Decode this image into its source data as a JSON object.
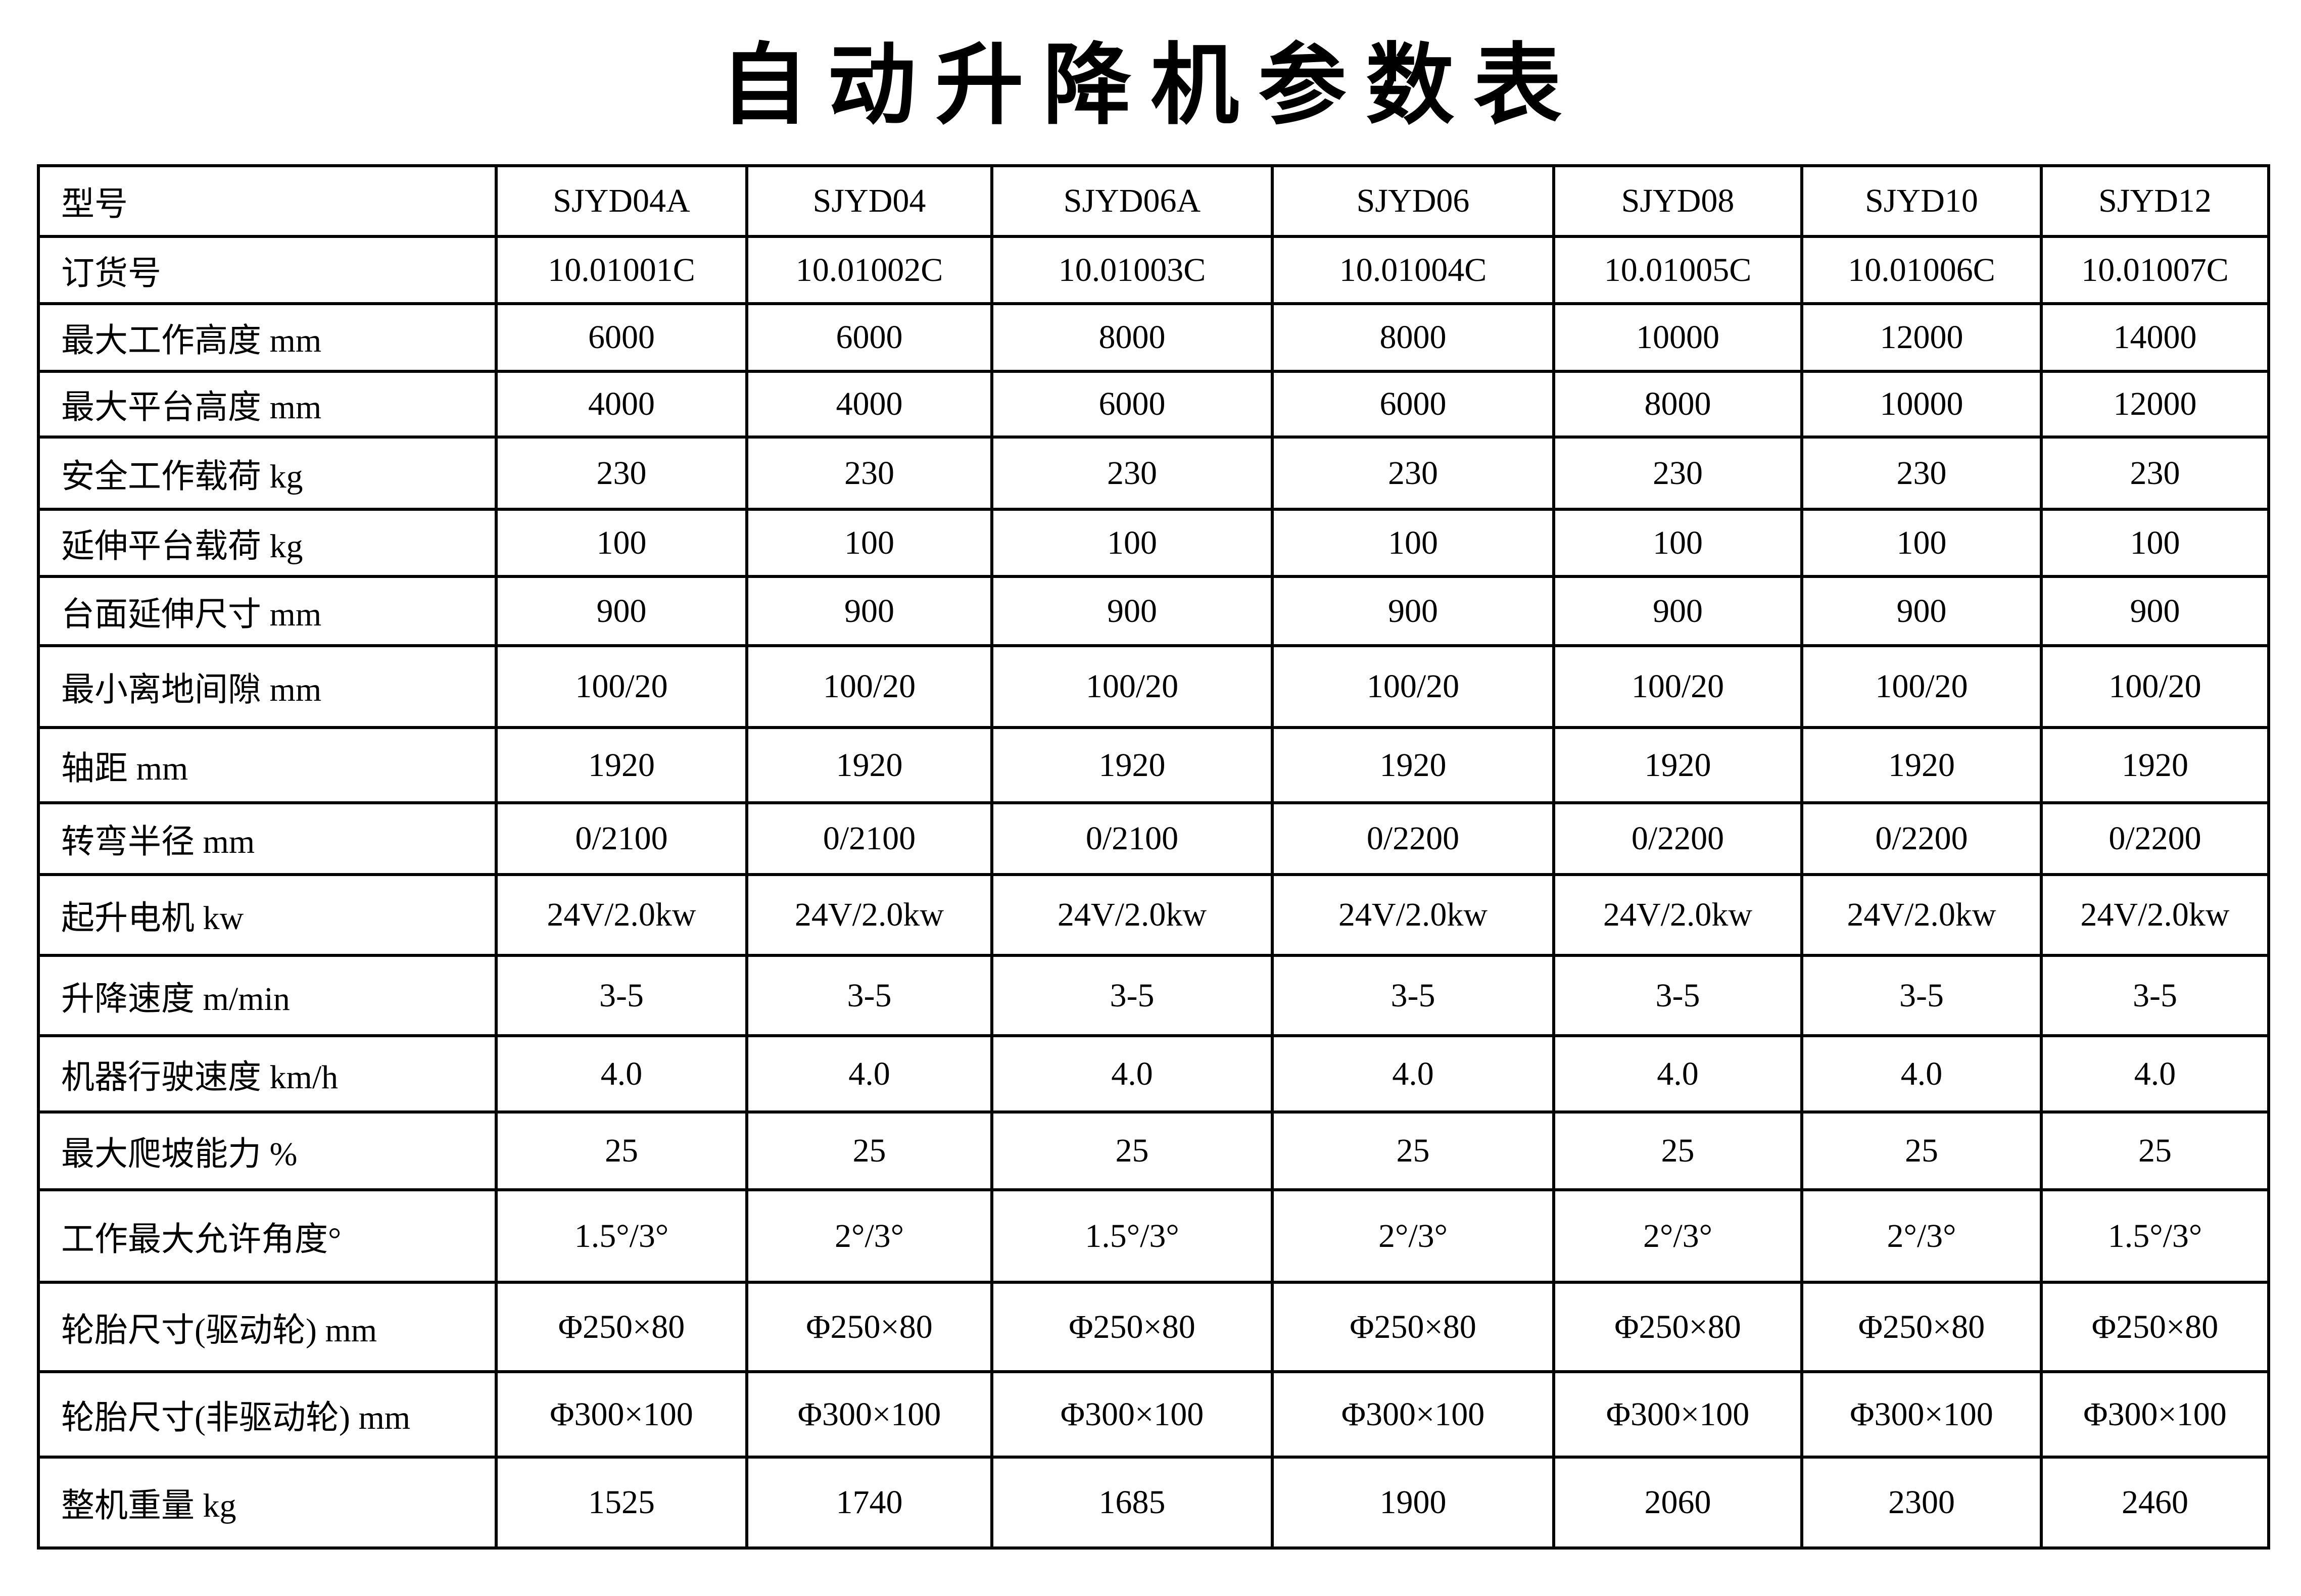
{
  "title": "自动升降机参数表",
  "table": {
    "rows": [
      {
        "label": "型号",
        "values": [
          "SJYD04A",
          "SJYD04",
          "SJYD06A",
          "SJYD06",
          "SJYD08",
          "SJYD10",
          "SJYD12"
        ]
      },
      {
        "label": "订货号",
        "values": [
          "10.01001C",
          "10.01002C",
          "10.01003C",
          "10.01004C",
          "10.01005C",
          "10.01006C",
          "10.01007C"
        ]
      },
      {
        "label": "最大工作高度 mm",
        "values": [
          "6000",
          "6000",
          "8000",
          "8000",
          "10000",
          "12000",
          "14000"
        ]
      },
      {
        "label": "最大平台高度 mm",
        "values": [
          "4000",
          "4000",
          "6000",
          "6000",
          "8000",
          "10000",
          "12000"
        ]
      },
      {
        "label": "安全工作载荷 kg",
        "values": [
          "230",
          "230",
          "230",
          "230",
          "230",
          "230",
          "230"
        ]
      },
      {
        "label": "延伸平台载荷 kg",
        "values": [
          "100",
          "100",
          "100",
          "100",
          "100",
          "100",
          "100"
        ]
      },
      {
        "label": "台面延伸尺寸 mm",
        "values": [
          "900",
          "900",
          "900",
          "900",
          "900",
          "900",
          "900"
        ]
      },
      {
        "label": "最小离地间隙 mm",
        "values": [
          "100/20",
          "100/20",
          "100/20",
          "100/20",
          "100/20",
          "100/20",
          "100/20"
        ]
      },
      {
        "label": "轴距 mm",
        "values": [
          "1920",
          "1920",
          "1920",
          "1920",
          "1920",
          "1920",
          "1920"
        ]
      },
      {
        "label": "转弯半径 mm",
        "values": [
          "0/2100",
          "0/2100",
          "0/2100",
          "0/2200",
          "0/2200",
          "0/2200",
          "0/2200"
        ]
      },
      {
        "label": "起升电机 kw",
        "values": [
          "24V/2.0kw",
          "24V/2.0kw",
          "24V/2.0kw",
          "24V/2.0kw",
          "24V/2.0kw",
          "24V/2.0kw",
          "24V/2.0kw"
        ]
      },
      {
        "label": "升降速度  m/min",
        "values": [
          "3-5",
          "3-5",
          "3-5",
          "3-5",
          "3-5",
          "3-5",
          "3-5"
        ]
      },
      {
        "label": "机器行驶速度 km/h",
        "values": [
          "4.0",
          "4.0",
          "4.0",
          "4.0",
          "4.0",
          "4.0",
          "4.0"
        ]
      },
      {
        "label": "最大爬坡能力  %",
        "values": [
          "25",
          "25",
          "25",
          "25",
          "25",
          "25",
          "25"
        ]
      },
      {
        "label": "工作最大允许角度°",
        "values": [
          "1.5°/3°",
          "2°/3°",
          "1.5°/3°",
          "2°/3°",
          "2°/3°",
          "2°/3°",
          "1.5°/3°"
        ]
      },
      {
        "label": "轮胎尺寸(驱动轮) mm",
        "values": [
          "Φ250×80",
          "Φ250×80",
          "Φ250×80",
          "Φ250×80",
          "Φ250×80",
          "Φ250×80",
          "Φ250×80"
        ]
      },
      {
        "label": "轮胎尺寸(非驱动轮)  mm",
        "values": [
          "Φ300×100",
          "Φ300×100",
          "Φ300×100",
          "Φ300×100",
          "Φ300×100",
          "Φ300×100",
          "Φ300×100"
        ]
      },
      {
        "label": "整机重量  kg",
        "values": [
          "1525",
          "1740",
          "1685",
          "1900",
          "2060",
          "2300",
          "2460"
        ]
      }
    ]
  }
}
